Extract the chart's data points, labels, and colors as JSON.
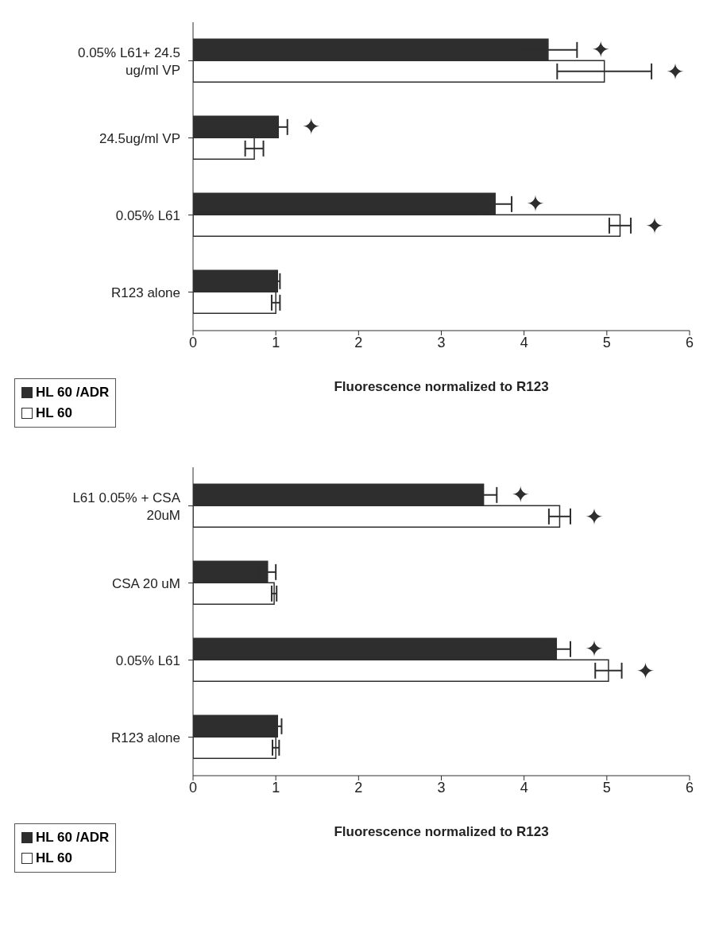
{
  "chart_data": [
    {
      "type": "bar",
      "orientation": "horizontal",
      "categories": [
        "0.05% L61+ 24.5 ug/ml VP",
        "24.5ug/ml VP",
        "0.05% L61",
        "R123 alone"
      ],
      "series": [
        {
          "name": "HL 60 /ADR",
          "color": "#2e2e2e",
          "values": [
            4.29,
            1.03,
            3.65,
            1.02
          ],
          "errors": [
            0.35,
            0.11,
            0.2,
            0.03
          ]
        },
        {
          "name": "HL 60",
          "color": "#ffffff",
          "values": [
            4.97,
            0.74,
            5.16,
            1.0
          ],
          "errors": [
            0.57,
            0.11,
            0.13,
            0.05
          ]
        }
      ],
      "xlabel": "Fluorescence normalized to R123",
      "xlim": [
        0,
        6
      ],
      "xticks": [
        0,
        1,
        2,
        3,
        4,
        5,
        6
      ],
      "legend": "bottom left",
      "annotations": [
        {
          "text": "✦",
          "x": 4.29,
          "y": "0.05% L61+ 24.5 ug/ml VP"
        },
        {
          "text": "✦",
          "x": 4.97,
          "y": "0.05% L61+ 24.5 ug/ml VP"
        },
        {
          "text": "✦",
          "x": 1.03,
          "y": "24.5ug/ml VP"
        },
        {
          "text": "✦",
          "x": 3.65,
          "y": "0.05% L61"
        },
        {
          "text": "✦",
          "x": 5.16,
          "y": "0.05% L61"
        }
      ]
    },
    {
      "type": "bar",
      "orientation": "horizontal",
      "categories": [
        "L61 0.05% + CSA 20uM",
        "CSA 20 uM",
        "0.05% L61",
        "R123 alone"
      ],
      "series": [
        {
          "name": "HL 60 /ADR",
          "color": "#2e2e2e",
          "values": [
            3.51,
            0.9,
            4.39,
            1.02
          ],
          "errors": [
            0.16,
            0.1,
            0.17,
            0.05
          ]
        },
        {
          "name": "HL 60",
          "color": "#ffffff",
          "values": [
            4.43,
            0.98,
            5.02,
            1.0
          ],
          "errors": [
            0.13,
            0.03,
            0.16,
            0.04
          ]
        }
      ],
      "xlabel": "Fluorescence normalized to R123",
      "xlim": [
        0,
        6
      ],
      "xticks": [
        0,
        1,
        2,
        3,
        4,
        5,
        6
      ],
      "legend": "bottom left",
      "annotations": [
        {
          "text": "✦",
          "x": 3.51,
          "y": "L61 0.05% + CSA 20uM"
        },
        {
          "text": "✦",
          "x": 4.43,
          "y": "L61 0.05% + CSA 20uM"
        },
        {
          "text": "✦",
          "x": 4.39,
          "y": "0.05% L61"
        },
        {
          "text": "✦",
          "x": 5.02,
          "y": "0.05% L61"
        }
      ]
    }
  ]
}
